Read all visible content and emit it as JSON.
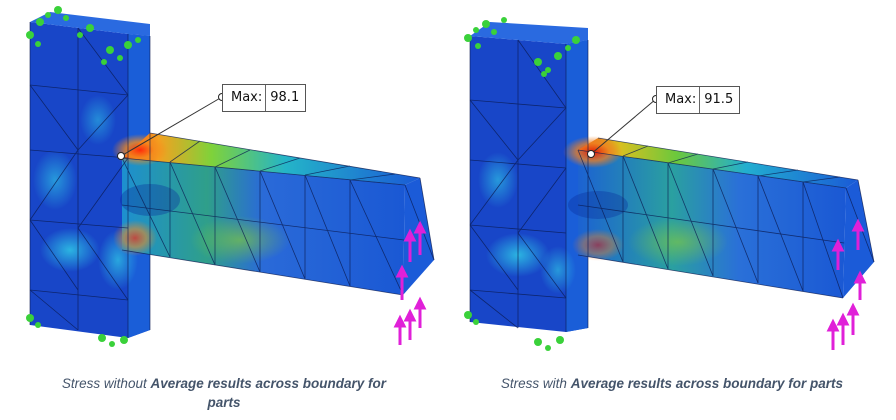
{
  "panels": [
    {
      "annotation": {
        "label": "Max:",
        "value": "98.1"
      },
      "caption": {
        "pre": "Stress without ",
        "bold": "Average results across boundary for",
        "post": "parts"
      },
      "colors": {
        "hotspot": "#e23a12",
        "mesh_base": "#1440c8"
      }
    },
    {
      "annotation": {
        "label": "Max:",
        "value": "91.5"
      },
      "caption": {
        "pre": "Stress with ",
        "bold": "Average results across boundary for parts",
        "post": ""
      },
      "colors": {
        "hotspot": "#d81e0a",
        "mesh_base": "#1440c8"
      }
    }
  ],
  "icons": {
    "fixture": "green-fixture-icon",
    "load": "magenta-load-arrow-icon"
  }
}
